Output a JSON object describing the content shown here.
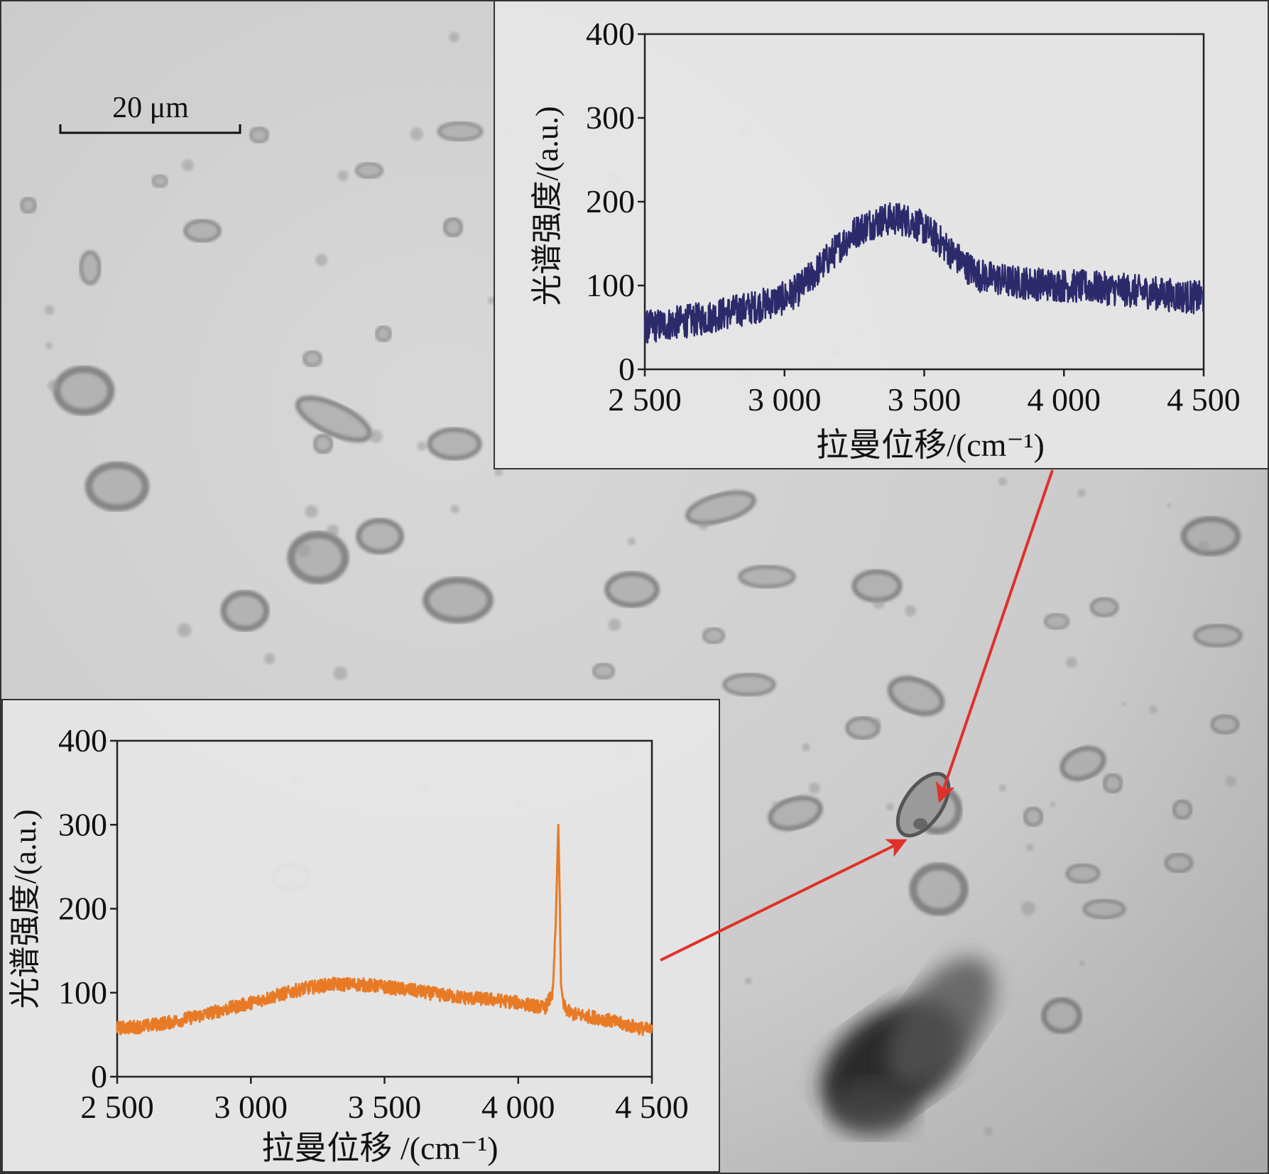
{
  "scale_bar": {
    "label": "20 μm"
  },
  "colors": {
    "series_top": "#2c2a6b",
    "series_bottom": "#e87a26",
    "arrow": "#e0302a",
    "frame": "#333333"
  },
  "chart_data": [
    {
      "type": "line",
      "title": "",
      "xlabel": "拉曼位移/(cm⁻¹)",
      "ylabel": "光谱强度/(a.u.)",
      "xlim": [
        2500,
        4500
      ],
      "ylim": [
        0,
        400
      ],
      "xticks": [
        2500,
        3000,
        3500,
        4000,
        4500
      ],
      "xtick_labels": [
        "2 500",
        "3 000",
        "3 500",
        "4 000",
        "4 500"
      ],
      "yticks": [
        0,
        100,
        200,
        300,
        400
      ],
      "ytick_labels": [
        "0",
        "100",
        "200",
        "300",
        "400"
      ],
      "grid": false,
      "series": [
        {
          "x": [
            2500,
            2600,
            2700,
            2800,
            2900,
            3000,
            3050,
            3100,
            3150,
            3200,
            3250,
            3300,
            3350,
            3400,
            3450,
            3500,
            3550,
            3600,
            3650,
            3700,
            3800,
            3900,
            4000,
            4100,
            4200,
            4300,
            4400,
            4500
          ],
          "y": [
            50,
            55,
            60,
            68,
            75,
            85,
            95,
            112,
            130,
            148,
            163,
            173,
            178,
            180,
            177,
            168,
            155,
            138,
            123,
            112,
            105,
            102,
            100,
            98,
            95,
            92,
            88,
            85
          ],
          "noise_amplitude": 20
        }
      ]
    },
    {
      "type": "line",
      "title": "",
      "xlabel": "拉曼位移 /(cm⁻¹)",
      "ylabel": "光谱强度/(a.u.)",
      "xlim": [
        2500,
        4500
      ],
      "ylim": [
        0,
        400
      ],
      "xticks": [
        2500,
        3000,
        3500,
        4000,
        4500
      ],
      "xtick_labels": [
        "2 500",
        "3 000",
        "3 500",
        "4 000",
        "4 500"
      ],
      "yticks": [
        0,
        100,
        200,
        300,
        400
      ],
      "ytick_labels": [
        "0",
        "100",
        "200",
        "300",
        "400"
      ],
      "grid": false,
      "series": [
        {
          "x": [
            2500,
            2600,
            2700,
            2800,
            2900,
            3000,
            3100,
            3200,
            3300,
            3400,
            3500,
            3600,
            3700,
            3800,
            3900,
            4000,
            4050,
            4100,
            4130,
            4140,
            4150,
            4155,
            4160,
            4170,
            4180,
            4200,
            4300,
            4400,
            4500
          ],
          "y": [
            58,
            60,
            65,
            72,
            80,
            88,
            97,
            105,
            110,
            110,
            107,
            103,
            98,
            94,
            92,
            88,
            85,
            82,
            100,
            180,
            300,
            220,
            110,
            85,
            80,
            75,
            70,
            62,
            55
          ],
          "noise_amplitude": 8
        }
      ]
    }
  ]
}
